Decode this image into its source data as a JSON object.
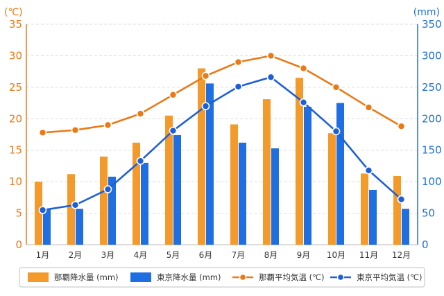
{
  "chart_data": {
    "type": "bar+line",
    "categories": [
      "1月",
      "2月",
      "3月",
      "4月",
      "5月",
      "6月",
      "7月",
      "8月",
      "9月",
      "10月",
      "11月",
      "12月"
    ],
    "bar_series": [
      {
        "name": "那覇降水量 (mm)",
        "axis": "right",
        "color": "#f39a2b",
        "values": [
          100,
          112,
          140,
          162,
          205,
          280,
          191,
          231,
          265,
          177,
          113,
          109
        ]
      },
      {
        "name": "東京降水量 (mm)",
        "axis": "right",
        "color": "#1f6fe3",
        "values": [
          56,
          57,
          108,
          130,
          174,
          256,
          162,
          153,
          219,
          225,
          87,
          57
        ]
      }
    ],
    "line_series": [
      {
        "name": "那覇平均気温 (℃)",
        "axis": "left",
        "color": "#ea7a16",
        "values": [
          17.8,
          18.2,
          19.0,
          20.8,
          23.8,
          26.8,
          29.0,
          30.0,
          28.0,
          25.0,
          21.8,
          18.8
        ]
      },
      {
        "name": "東京平均気温 (℃)",
        "axis": "left",
        "color": "#1d5fd6",
        "values": [
          5.5,
          6.3,
          8.8,
          13.3,
          18.1,
          22.0,
          25.1,
          26.6,
          22.6,
          18.0,
          11.8,
          7.2
        ]
      }
    ],
    "y_left": {
      "unit_label": "(℃)",
      "min": 0,
      "max": 35,
      "ticks": [
        "0",
        "5",
        "10",
        "15",
        "20",
        "25",
        "30",
        "35"
      ]
    },
    "y_right": {
      "unit_label": "(mm)",
      "min": 0,
      "max": 350,
      "ticks": [
        "0",
        "50",
        "100",
        "150",
        "200",
        "250",
        "300",
        "350"
      ]
    },
    "grid": true,
    "legend_position": "bottom"
  }
}
